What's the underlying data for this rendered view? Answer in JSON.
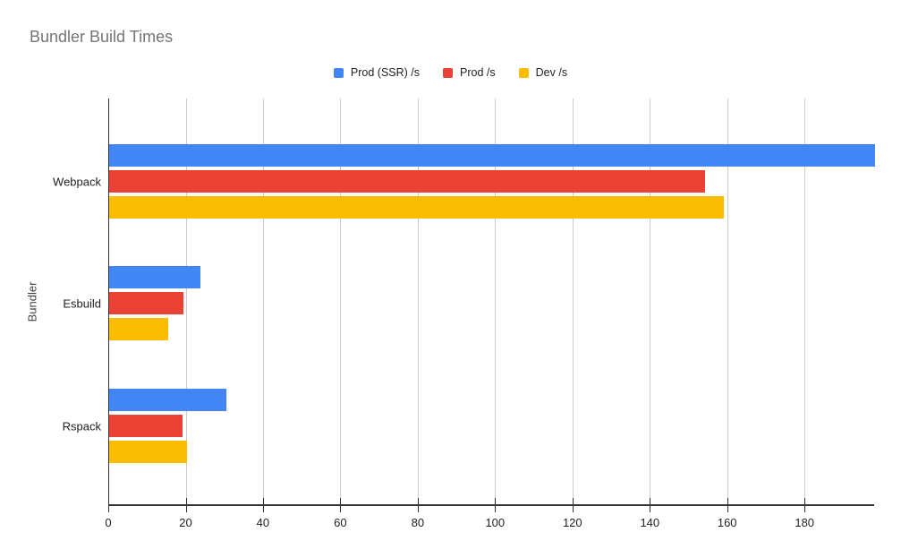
{
  "chart_data": {
    "type": "bar",
    "orientation": "horizontal",
    "title": "Bundler Build Times",
    "categories": [
      "Webpack",
      "Esbuild",
      "Rspack"
    ],
    "series": [
      {
        "name": "Prod (SSR) /s",
        "color": "#4285F4",
        "values": [
          198,
          23.5,
          30.3
        ]
      },
      {
        "name": "Prod /s",
        "color": "#EA4335",
        "values": [
          154,
          19.2,
          18.9
        ]
      },
      {
        "name": "Dev /s",
        "color": "#FBBC04",
        "values": [
          159,
          15.3,
          20
        ]
      }
    ],
    "xlabel": "",
    "ylabel": "Bundler",
    "x_ticks": [
      0,
      20,
      40,
      60,
      80,
      100,
      120,
      140,
      160,
      180
    ],
    "xlim": [
      0,
      198
    ],
    "grid": true,
    "legend_position": "top",
    "colors": {
      "title_text": "#757575",
      "axis_line": "#333333",
      "gridline": "#cccccc",
      "label_text": "#1f1f1f"
    }
  }
}
